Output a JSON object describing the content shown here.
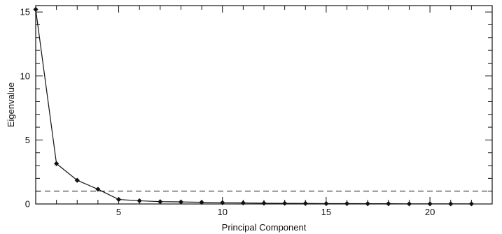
{
  "chart_data": {
    "type": "line",
    "title": "",
    "xlabel": "Principal Component",
    "ylabel": "Eigenvalue",
    "xlim": [
      1,
      23
    ],
    "ylim": [
      0,
      15.5
    ],
    "x_ticks": [
      5,
      10,
      15,
      20
    ],
    "y_ticks": [
      0,
      5,
      10,
      15
    ],
    "x_minor_step": 1,
    "y_minor_step": 1,
    "grid": false,
    "series": [
      {
        "x": [
          1,
          2,
          3,
          4,
          5,
          6,
          7,
          8,
          9,
          10,
          11,
          12,
          13,
          14,
          15,
          16,
          17,
          18,
          19,
          20,
          21,
          22
        ],
        "values": [
          15.2,
          3.15,
          1.85,
          1.15,
          0.35,
          0.25,
          0.18,
          0.16,
          0.13,
          0.1,
          0.08,
          0.06,
          0.05,
          0.04,
          0.03,
          0.03,
          0.02,
          0.02,
          0.01,
          0.01,
          0.01,
          0.01
        ]
      }
    ],
    "reference_lines": [
      {
        "orientation": "horizontal",
        "y": 1,
        "style": "dashed"
      }
    ],
    "colors": {
      "line": "#111111",
      "marker": "#111111",
      "axis": "#111111",
      "reference": "#111111"
    }
  }
}
